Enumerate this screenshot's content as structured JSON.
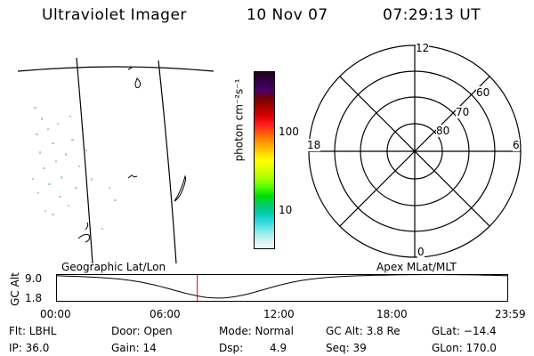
{
  "header": {
    "title": "Ultraviolet Imager",
    "date": "10 Nov 07",
    "time": "07:29:13 UT"
  },
  "colorbar": {
    "unit_label": "photon cm⁻²s⁻¹",
    "ticks": [
      "100",
      "10"
    ],
    "colors": [
      "#220022",
      "#330044",
      "#440066",
      "#770000",
      "#aa0000",
      "#dd0000",
      "#ff2020",
      "#ff6000",
      "#ff9900",
      "#ffcc00",
      "#ffff00",
      "#ddff00",
      "#aaff00",
      "#55ff00",
      "#00e000",
      "#00cc66",
      "#00c8b0",
      "#30d8e0",
      "#80e8e8",
      "#d0f0f0",
      "#f0f8f8"
    ]
  },
  "polar": {
    "labels": {
      "top": "12",
      "bottom": "0",
      "left": "18",
      "right": "6"
    },
    "ring_labels": [
      "80",
      "70",
      "60"
    ]
  },
  "panel_labels": {
    "left": "Geographic Lat/Lon",
    "right": "Apex MLat/MLT"
  },
  "alt_plot": {
    "axis_label": "GC Alt",
    "y_ticks": [
      "9.0",
      "1.8"
    ],
    "x_ticks": [
      "00:00",
      "06:00",
      "12:00",
      "18:00",
      "23:59"
    ],
    "current_time_hours": 7.49,
    "marker_color": "#cc0000"
  },
  "info": {
    "flt": "Flt: LBHL",
    "ip": "IP: 36.0",
    "door": "Door: Open",
    "gain": "Gain: 14",
    "mode": "Mode: Normal",
    "dsp_label": "Dsp:",
    "dsp_value": "4.9",
    "gc_alt": "GC Alt: 3.8 Re",
    "seq": "Seq: 39",
    "glat": "GLat: −14.4",
    "glon": "GLon: 170.0"
  }
}
